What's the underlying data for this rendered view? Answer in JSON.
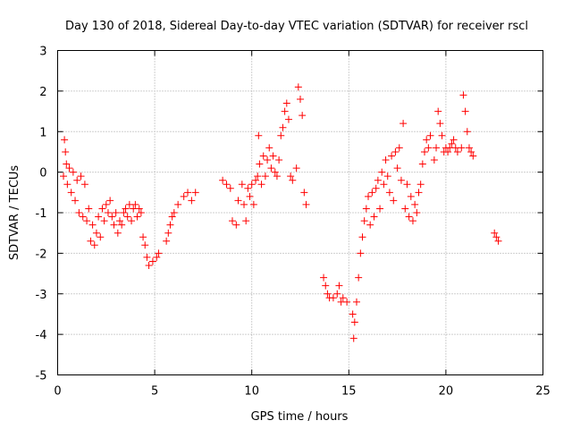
{
  "chart_data": {
    "type": "scatter",
    "title": "Day 130 of 2018, Sidereal Day-to-day VTEC variation (SDTVAR) for receiver rscl",
    "xlabel": "GPS time / hours",
    "ylabel": "SDTVAR / TECUs",
    "xlim": [
      0,
      25
    ],
    "ylim": [
      -5,
      3
    ],
    "xticks": [
      0,
      5,
      10,
      15,
      20,
      25
    ],
    "yticks": [
      -5,
      -4,
      -3,
      -2,
      -1,
      0,
      1,
      2,
      3
    ],
    "grid": true,
    "marker": "plus",
    "color": "#ff0000",
    "series": [
      {
        "name": "SDTVAR",
        "points": [
          [
            0.3,
            -0.1
          ],
          [
            0.35,
            0.8
          ],
          [
            0.4,
            0.5
          ],
          [
            0.45,
            0.2
          ],
          [
            0.5,
            -0.3
          ],
          [
            0.6,
            0.1
          ],
          [
            0.7,
            -0.5
          ],
          [
            0.8,
            0.0
          ],
          [
            0.9,
            -0.7
          ],
          [
            1.0,
            -0.2
          ],
          [
            1.1,
            -1.0
          ],
          [
            1.2,
            -0.1
          ],
          [
            1.3,
            -1.1
          ],
          [
            1.4,
            -0.3
          ],
          [
            1.5,
            -1.2
          ],
          [
            1.6,
            -0.9
          ],
          [
            1.7,
            -1.7
          ],
          [
            1.8,
            -1.3
          ],
          [
            1.9,
            -1.8
          ],
          [
            2.0,
            -1.5
          ],
          [
            2.1,
            -1.1
          ],
          [
            2.2,
            -1.6
          ],
          [
            2.3,
            -0.9
          ],
          [
            2.4,
            -1.2
          ],
          [
            2.5,
            -0.8
          ],
          [
            2.6,
            -1.0
          ],
          [
            2.7,
            -0.7
          ],
          [
            2.8,
            -1.1
          ],
          [
            2.9,
            -1.3
          ],
          [
            3.0,
            -1.0
          ],
          [
            3.1,
            -1.5
          ],
          [
            3.2,
            -1.2
          ],
          [
            3.3,
            -1.3
          ],
          [
            3.4,
            -1.0
          ],
          [
            3.5,
            -0.9
          ],
          [
            3.6,
            -1.1
          ],
          [
            3.7,
            -0.8
          ],
          [
            3.8,
            -1.2
          ],
          [
            3.9,
            -0.9
          ],
          [
            4.0,
            -0.8
          ],
          [
            4.1,
            -1.1
          ],
          [
            4.2,
            -0.9
          ],
          [
            4.3,
            -1.0
          ],
          [
            4.4,
            -1.6
          ],
          [
            4.5,
            -1.8
          ],
          [
            4.6,
            -2.1
          ],
          [
            4.7,
            -2.3
          ],
          [
            4.9,
            -2.2
          ],
          [
            5.1,
            -2.1
          ],
          [
            5.2,
            -2.0
          ],
          [
            5.6,
            -1.7
          ],
          [
            5.7,
            -1.5
          ],
          [
            5.8,
            -1.3
          ],
          [
            5.9,
            -1.1
          ],
          [
            6.0,
            -1.0
          ],
          [
            6.2,
            -0.8
          ],
          [
            6.5,
            -0.6
          ],
          [
            6.7,
            -0.5
          ],
          [
            6.9,
            -0.7
          ],
          [
            7.1,
            -0.5
          ],
          [
            8.5,
            -0.2
          ],
          [
            8.7,
            -0.3
          ],
          [
            8.9,
            -0.4
          ],
          [
            9.0,
            -1.2
          ],
          [
            9.2,
            -1.3
          ],
          [
            9.3,
            -0.7
          ],
          [
            9.5,
            -0.3
          ],
          [
            9.6,
            -0.8
          ],
          [
            9.7,
            -1.2
          ],
          [
            9.8,
            -0.4
          ],
          [
            9.9,
            -0.6
          ],
          [
            10.0,
            -0.3
          ],
          [
            10.1,
            -0.8
          ],
          [
            10.2,
            -0.2
          ],
          [
            10.3,
            -0.1
          ],
          [
            10.35,
            0.9
          ],
          [
            10.4,
            0.2
          ],
          [
            10.5,
            -0.3
          ],
          [
            10.6,
            0.4
          ],
          [
            10.7,
            -0.1
          ],
          [
            10.8,
            0.3
          ],
          [
            10.9,
            0.6
          ],
          [
            11.0,
            0.1
          ],
          [
            11.1,
            0.4
          ],
          [
            11.2,
            0.0
          ],
          [
            11.3,
            -0.1
          ],
          [
            11.4,
            0.3
          ],
          [
            11.5,
            0.9
          ],
          [
            11.6,
            1.1
          ],
          [
            11.7,
            1.5
          ],
          [
            11.8,
            1.7
          ],
          [
            11.9,
            1.3
          ],
          [
            12.0,
            -0.1
          ],
          [
            12.1,
            -0.2
          ],
          [
            12.3,
            0.1
          ],
          [
            12.4,
            2.1
          ],
          [
            12.5,
            1.8
          ],
          [
            12.6,
            1.4
          ],
          [
            12.7,
            -0.5
          ],
          [
            12.8,
            -0.8
          ],
          [
            13.7,
            -2.6
          ],
          [
            13.8,
            -2.8
          ],
          [
            13.9,
            -3.0
          ],
          [
            14.0,
            -3.1
          ],
          [
            14.2,
            -3.1
          ],
          [
            14.4,
            -3.0
          ],
          [
            14.5,
            -2.8
          ],
          [
            14.6,
            -3.2
          ],
          [
            14.7,
            -3.1
          ],
          [
            14.9,
            -3.2
          ],
          [
            15.2,
            -3.5
          ],
          [
            15.25,
            -4.1
          ],
          [
            15.3,
            -3.7
          ],
          [
            15.4,
            -3.2
          ],
          [
            15.5,
            -2.6
          ],
          [
            15.6,
            -2.0
          ],
          [
            15.7,
            -1.6
          ],
          [
            15.8,
            -1.2
          ],
          [
            15.9,
            -0.9
          ],
          [
            16.0,
            -0.6
          ],
          [
            16.1,
            -1.3
          ],
          [
            16.2,
            -0.5
          ],
          [
            16.3,
            -1.1
          ],
          [
            16.4,
            -0.4
          ],
          [
            16.5,
            -0.2
          ],
          [
            16.6,
            -0.9
          ],
          [
            16.7,
            0.0
          ],
          [
            16.8,
            -0.3
          ],
          [
            16.9,
            0.3
          ],
          [
            17.0,
            -0.1
          ],
          [
            17.1,
            -0.5
          ],
          [
            17.2,
            0.4
          ],
          [
            17.3,
            -0.7
          ],
          [
            17.4,
            0.5
          ],
          [
            17.5,
            0.1
          ],
          [
            17.6,
            0.6
          ],
          [
            17.7,
            -0.2
          ],
          [
            17.8,
            1.2
          ],
          [
            17.9,
            -0.9
          ],
          [
            18.0,
            -0.3
          ],
          [
            18.1,
            -1.1
          ],
          [
            18.2,
            -0.6
          ],
          [
            18.3,
            -1.2
          ],
          [
            18.4,
            -0.8
          ],
          [
            18.5,
            -1.0
          ],
          [
            18.6,
            -0.5
          ],
          [
            18.7,
            -0.3
          ],
          [
            18.8,
            0.2
          ],
          [
            18.9,
            0.5
          ],
          [
            19.0,
            0.8
          ],
          [
            19.1,
            0.6
          ],
          [
            19.2,
            0.9
          ],
          [
            19.4,
            0.3
          ],
          [
            19.5,
            0.6
          ],
          [
            19.6,
            1.5
          ],
          [
            19.7,
            1.2
          ],
          [
            19.8,
            0.9
          ],
          [
            19.9,
            0.5
          ],
          [
            20.0,
            0.6
          ],
          [
            20.1,
            0.5
          ],
          [
            20.2,
            0.6
          ],
          [
            20.3,
            0.7
          ],
          [
            20.4,
            0.8
          ],
          [
            20.5,
            0.6
          ],
          [
            20.6,
            0.5
          ],
          [
            20.8,
            0.6
          ],
          [
            20.9,
            1.9
          ],
          [
            21.0,
            1.5
          ],
          [
            21.1,
            1.0
          ],
          [
            21.2,
            0.6
          ],
          [
            21.3,
            0.5
          ],
          [
            21.4,
            0.4
          ],
          [
            22.5,
            -1.5
          ],
          [
            22.6,
            -1.6
          ],
          [
            22.7,
            -1.7
          ]
        ]
      }
    ]
  }
}
